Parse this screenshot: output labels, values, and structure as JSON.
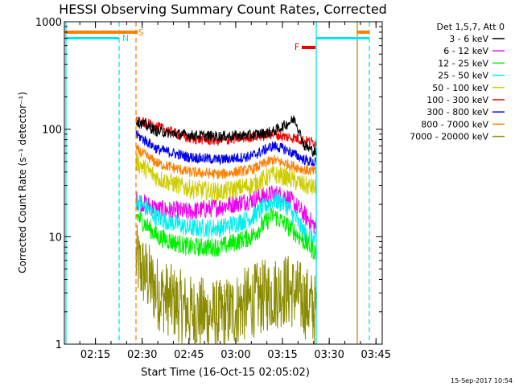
{
  "chart_data": {
    "type": "line",
    "title": "HESSI Observing Summary Count Rates, Corrected",
    "xlabel": "Start Time (16-Oct-15 02:05:02)",
    "ylabel": "Corrected Count Rate (s⁻¹ detector⁻¹)",
    "yscale": "log",
    "ylim": [
      1,
      1000
    ],
    "xlim": [
      "02:05:02",
      "03:47:00"
    ],
    "x_ticks": [
      "02:15",
      "02:30",
      "02:45",
      "03:00",
      "03:15",
      "03:30",
      "03:45"
    ],
    "y_ticks": [
      "1",
      "10",
      "100",
      "1000"
    ],
    "footer": "15-Sep-2017 10:54",
    "legend_header": "Det 1,5,7, Att 0",
    "flags": [
      {
        "label": "S",
        "color": "#ff7f00"
      },
      {
        "label": "N",
        "color": "#00e5ee"
      },
      {
        "label": "F",
        "color": "#ee0000"
      }
    ],
    "series": [
      {
        "name": "3 - 6 keV",
        "color": "#000000",
        "x": [
          "02:28",
          "02:35",
          "02:45",
          "02:55",
          "03:05",
          "03:12",
          "03:16",
          "03:19",
          "03:22",
          "03:26"
        ],
        "values": [
          120,
          95,
          88,
          86,
          88,
          95,
          110,
          125,
          70,
          60
        ]
      },
      {
        "name": "6 - 12 keV",
        "color": "#ee00ee",
        "x": [
          "02:28",
          "02:35",
          "02:45",
          "02:55",
          "03:05",
          "03:12",
          "03:16",
          "03:19",
          "03:22",
          "03:26"
        ],
        "values": [
          22,
          18,
          17,
          19,
          22,
          25,
          24,
          20,
          16,
          12
        ]
      },
      {
        "name": "12 - 25 keV",
        "color": "#00ee00",
        "x": [
          "02:28",
          "02:35",
          "02:45",
          "02:55",
          "03:05",
          "03:12",
          "03:16",
          "03:19",
          "03:22",
          "03:26"
        ],
        "values": [
          16,
          10,
          8,
          8,
          10,
          16,
          13,
          11,
          9,
          7
        ]
      },
      {
        "name": "25 - 50 keV",
        "color": "#00eeee",
        "x": [
          "02:28",
          "02:35",
          "02:45",
          "02:55",
          "03:05",
          "03:12",
          "03:16",
          "03:19",
          "03:22",
          "03:26"
        ],
        "values": [
          22,
          15,
          12,
          12,
          15,
          22,
          20,
          15,
          11,
          9
        ]
      },
      {
        "name": "50 - 100 keV",
        "color": "#cdcd00",
        "x": [
          "02:28",
          "02:35",
          "02:45",
          "02:55",
          "03:05",
          "03:12",
          "03:16",
          "03:19",
          "03:22",
          "03:26"
        ],
        "values": [
          50,
          35,
          28,
          26,
          30,
          38,
          36,
          33,
          30,
          28
        ]
      },
      {
        "name": "100 - 300 keV",
        "color": "#ee0000",
        "x": [
          "02:28",
          "02:35",
          "02:45",
          "02:55",
          "03:05",
          "03:12",
          "03:16",
          "03:19",
          "03:22",
          "03:26"
        ],
        "values": [
          120,
          105,
          82,
          78,
          85,
          90,
          85,
          83,
          78,
          75
        ]
      },
      {
        "name": "300 - 800 keV",
        "color": "#0000ee",
        "x": [
          "02:28",
          "02:35",
          "02:45",
          "02:55",
          "03:05",
          "03:12",
          "03:16",
          "03:19",
          "03:22",
          "03:26"
        ],
        "values": [
          90,
          65,
          55,
          52,
          56,
          70,
          65,
          58,
          52,
          48
        ]
      },
      {
        "name": "800 - 7000 keV",
        "color": "#ff7f00",
        "x": [
          "02:28",
          "02:35",
          "02:45",
          "02:55",
          "03:05",
          "03:12",
          "03:16",
          "03:19",
          "03:22",
          "03:26"
        ],
        "values": [
          65,
          48,
          40,
          38,
          42,
          52,
          48,
          45,
          42,
          40
        ]
      },
      {
        "name": "7000 - 20000 keV",
        "color": "#8b8b00",
        "x": [
          "02:28",
          "02:35",
          "02:45",
          "02:55",
          "03:05",
          "03:12",
          "03:16",
          "03:19",
          "03:22",
          "03:26"
        ],
        "values": [
          6,
          3,
          2,
          1.8,
          2.5,
          3,
          3.2,
          3,
          2.5,
          2
        ]
      }
    ]
  }
}
